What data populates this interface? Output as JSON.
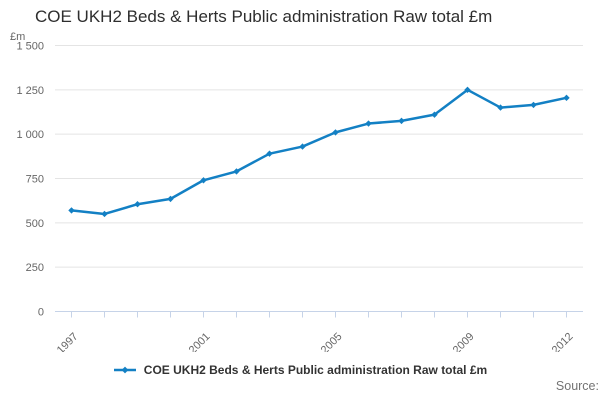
{
  "title": "COE UKH2 Beds & Herts Public administration Raw total £m",
  "source_label": "Source:",
  "legend": {
    "label": "COE UKH2 Beds & Herts Public administration Raw total £m",
    "marker": "line-with-diamond"
  },
  "colors": {
    "series": "#1380c4",
    "grid": "#e4e4e4",
    "axis": "#c6d3e8",
    "tick_text": "#666666",
    "title_text": "#2e2e2e",
    "legend_text": "#333333",
    "source_text": "#737373"
  },
  "chart_data": {
    "type": "line",
    "title": "COE UKH2 Beds & Herts Public administration Raw total £m",
    "xlabel": "",
    "ylabel": "£m",
    "x": [
      "1997",
      "1998",
      "1999",
      "2000",
      "2001",
      "2002",
      "2003",
      "2004",
      "2005",
      "2006",
      "2007",
      "2008",
      "2009",
      "2010",
      "2011",
      "2012"
    ],
    "series": [
      {
        "name": "COE UKH2 Beds & Herts Public administration Raw total £m",
        "values": [
          570,
          550,
          605,
          635,
          740,
          790,
          890,
          930,
          1010,
          1060,
          1075,
          1110,
          1250,
          1150,
          1165,
          1205
        ]
      }
    ],
    "ylim": [
      0,
      1500
    ],
    "y_ticks": [
      0,
      250,
      500,
      750,
      1000,
      1250,
      1500
    ],
    "y_tick_labels": [
      "0",
      "250",
      "500",
      "750",
      "1 000",
      "1 250",
      "1 500"
    ],
    "x_labels_shown": [
      "1997",
      "2001",
      "2005",
      "2009",
      "2012"
    ],
    "grid": "horizontal",
    "legend_position": "bottom",
    "marker": "diamond"
  }
}
